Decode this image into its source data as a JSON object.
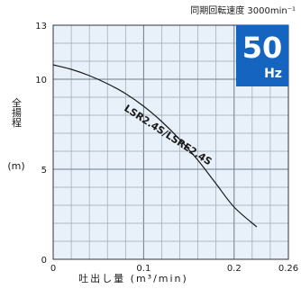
{
  "chart_data": {
    "type": "line",
    "speed_note": "同期回転速度 3000min⁻¹",
    "frequency_badge": {
      "value": "50",
      "unit": "Hz",
      "color": "#1565c0"
    },
    "ylabel": "全揚程 (m)",
    "xlabel": "吐出し量 (m³/min)",
    "xlim": [
      0,
      0.26
    ],
    "ylim": [
      0,
      13
    ],
    "x_minor_step": 0.02,
    "y_minor_step": 1,
    "x_ticks": [
      {
        "value": 0,
        "label": "0"
      },
      {
        "value": 0.1,
        "label": "0.1"
      },
      {
        "value": 0.2,
        "label": "0.2"
      },
      {
        "value": 0.26,
        "label": "0.26"
      }
    ],
    "y_ticks": [
      {
        "value": 0,
        "label": "0"
      },
      {
        "value": 5,
        "label": "5"
      },
      {
        "value": 10,
        "label": "10"
      },
      {
        "value": 13,
        "label": "13"
      }
    ],
    "plot_background": "#e8f1fa",
    "grid": true,
    "series": [
      {
        "name": "LSR2.4S/LSRE2.4S",
        "color": "#1a1a1a",
        "points": [
          [
            0,
            10.8
          ],
          [
            0.02,
            10.55
          ],
          [
            0.04,
            10.2
          ],
          [
            0.06,
            9.75
          ],
          [
            0.08,
            9.2
          ],
          [
            0.1,
            8.5
          ],
          [
            0.12,
            7.65
          ],
          [
            0.14,
            6.65
          ],
          [
            0.16,
            5.5
          ],
          [
            0.18,
            4.2
          ],
          [
            0.2,
            2.9
          ],
          [
            0.225,
            1.8
          ]
        ]
      }
    ]
  }
}
